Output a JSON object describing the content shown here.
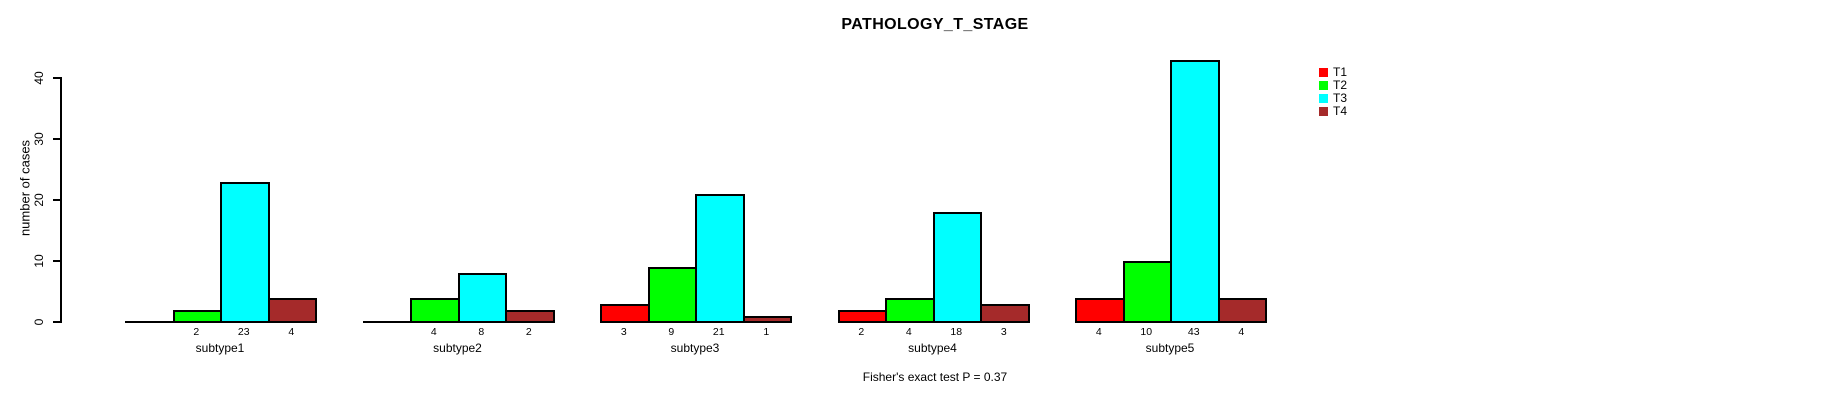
{
  "chart_data": {
    "type": "bar",
    "title": "PATHOLOGY_T_STAGE",
    "ylabel": "number of cases",
    "annotation": "Fisher's exact test P = 0.37",
    "categories": [
      "subtype1",
      "subtype2",
      "subtype3",
      "subtype4",
      "subtype5"
    ],
    "series": [
      {
        "name": "T1",
        "color": "#FF0000",
        "values": [
          0,
          0,
          3,
          2,
          4
        ]
      },
      {
        "name": "T2",
        "color": "#00FF00",
        "values": [
          2,
          4,
          9,
          4,
          10
        ]
      },
      {
        "name": "T3",
        "color": "#00FFFF",
        "values": [
          23,
          8,
          21,
          18,
          43
        ]
      },
      {
        "name": "T4",
        "color": "#A52A2A",
        "values": [
          4,
          2,
          1,
          3,
          4
        ]
      }
    ],
    "bar_value_labels": [
      [
        "",
        "2",
        "23",
        "4"
      ],
      [
        "",
        "4",
        "8",
        "2"
      ],
      [
        "3",
        "9",
        "21",
        "1"
      ],
      [
        "2",
        "4",
        "18",
        "3"
      ],
      [
        "4",
        "10",
        "43",
        "4"
      ]
    ],
    "yticks": [
      0,
      10,
      20,
      30,
      40
    ],
    "ylim": [
      0,
      43
    ],
    "grid": false,
    "legend_position": "top-right",
    "axis_color": "#000000",
    "background": "#FFFFFF"
  }
}
